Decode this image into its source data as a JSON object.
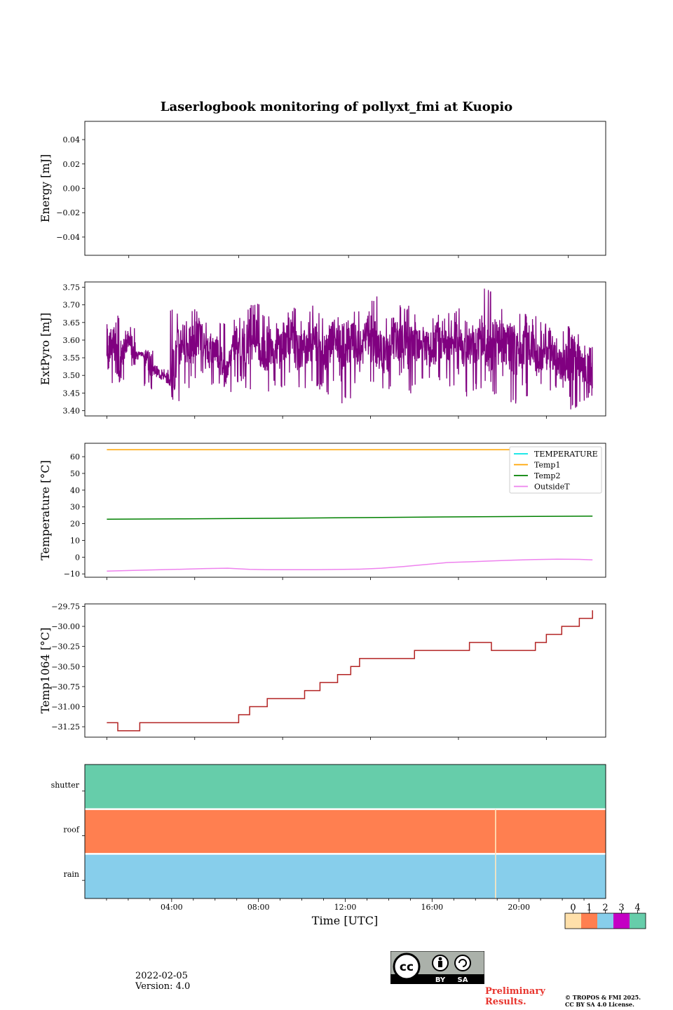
{
  "title": "Laserlogbook monitoring of pollyxt_fmi at Kuopio",
  "footer": {
    "date": "2022-02-05",
    "version": "Version: 4.0",
    "preliminary_line1": "Preliminary",
    "preliminary_line2": "Results.",
    "copyright_line1": "© TROPOS & FMI 2025.",
    "copyright_line2": "CC BY SA 4.0 License.",
    "cc_label_by": "BY",
    "cc_label_sa": "SA",
    "cc_label_cc": "cc"
  },
  "colors": {
    "extpyro": "#800080",
    "temperature": "#00e5e5",
    "temp1": "#ffa500",
    "temp2": "#008000",
    "outsideT": "#ee82ee",
    "temp1064": "#b22222",
    "prelim": "#e8352e"
  },
  "chart_data": [
    {
      "type": "line",
      "ylabel": "Energy [mJ]",
      "ylim": [
        -0.055,
        0.055
      ],
      "yticks": [
        -0.04,
        -0.02,
        0.0,
        0.02,
        0.04
      ],
      "ytick_labels": [
        "−0.04",
        "−0.02",
        "0.00",
        "0.02",
        "0.04"
      ],
      "series": []
    },
    {
      "type": "line",
      "ylabel": "ExtPyro [mJ]",
      "ylim": [
        3.385,
        3.765
      ],
      "yticks": [
        3.4,
        3.45,
        3.5,
        3.55,
        3.6,
        3.65,
        3.7,
        3.75
      ],
      "ytick_labels": [
        "3.40",
        "3.45",
        "3.50",
        "3.55",
        "3.60",
        "3.65",
        "3.70",
        "3.75"
      ],
      "series": [
        {
          "name": "ExtPyro",
          "x": [
            0.5,
            0.8,
            1.1,
            1.3,
            1.5,
            1.8,
            2.2,
            2.6,
            3.0,
            3.4,
            3.9,
            4.3,
            4.7,
            5.1,
            5.5,
            5.9,
            6.3,
            6.8,
            7.2,
            7.6,
            8.0,
            8.4,
            8.8,
            9.2,
            9.6,
            10.0,
            10.4,
            10.8,
            11.2,
            11.6,
            12.0,
            12.4,
            12.8,
            13.2,
            13.6,
            14.0,
            14.4,
            14.8,
            15.2,
            15.6,
            16.0,
            16.4,
            16.8,
            17.2,
            17.6,
            18.0,
            18.4,
            18.8,
            19.2,
            19.6,
            20.0,
            20.4,
            20.8,
            21.2,
            21.6,
            22.0,
            22.4,
            22.6
          ],
          "y": [
            3.55,
            3.6,
            3.52,
            3.58,
            3.6,
            3.56,
            3.56,
            3.52,
            3.5,
            3.48,
            3.6,
            3.58,
            3.62,
            3.56,
            3.58,
            3.5,
            3.6,
            3.58,
            3.62,
            3.55,
            3.6,
            3.58,
            3.62,
            3.56,
            3.59,
            3.6,
            3.57,
            3.61,
            3.58,
            3.6,
            3.56,
            3.62,
            3.58,
            3.55,
            3.6,
            3.59,
            3.58,
            3.61,
            3.56,
            3.6,
            3.58,
            3.62,
            3.57,
            3.59,
            3.61,
            3.55,
            3.6,
            3.58,
            3.56,
            3.6,
            3.55,
            3.58,
            3.56,
            3.52,
            3.55,
            3.53,
            3.52,
            3.5
          ],
          "range_min": [
            3.47,
            3.5,
            3.48,
            3.54,
            3.52,
            3.54,
            3.46,
            3.5,
            3.48,
            3.42,
            3.46,
            3.48,
            3.5,
            3.46,
            3.47,
            3.44,
            3.48,
            3.46,
            3.5,
            3.44,
            3.47,
            3.46,
            3.5,
            3.46,
            3.48,
            3.46,
            3.44,
            3.48,
            3.42,
            3.46,
            3.44,
            3.48,
            3.46,
            3.46,
            3.5,
            3.44,
            3.46,
            3.48,
            3.46,
            3.48,
            3.46,
            3.5,
            3.44,
            3.46,
            3.48,
            3.44,
            3.48,
            3.42,
            3.46,
            3.44,
            3.46,
            3.44,
            3.46,
            3.42,
            3.4,
            3.42,
            3.43,
            3.46
          ],
          "range_max": [
            3.65,
            3.67,
            3.6,
            3.63,
            3.64,
            3.57,
            3.58,
            3.56,
            3.52,
            3.69,
            3.66,
            3.7,
            3.65,
            3.62,
            3.65,
            3.55,
            3.67,
            3.7,
            3.71,
            3.68,
            3.7,
            3.68,
            3.7,
            3.66,
            3.7,
            3.68,
            3.66,
            3.68,
            3.66,
            3.7,
            3.64,
            3.73,
            3.68,
            3.68,
            3.7,
            3.7,
            3.68,
            3.69,
            3.68,
            3.67,
            3.68,
            3.7,
            3.66,
            3.7,
            3.75,
            3.66,
            3.7,
            3.69,
            3.68,
            3.66,
            3.67,
            3.7,
            3.62,
            3.64,
            3.62,
            3.6,
            3.59,
            3.57
          ]
        }
      ]
    },
    {
      "type": "line",
      "ylabel": "Temperature [°C]",
      "ylim": [
        -12,
        68
      ],
      "yticks": [
        -10,
        0,
        10,
        20,
        30,
        40,
        50,
        60
      ],
      "ytick_labels": [
        "−10",
        "0",
        "10",
        "20",
        "30",
        "40",
        "50",
        "60"
      ],
      "legend": [
        "TEMPERATURE",
        "Temp1",
        "Temp2",
        "OutsideT"
      ],
      "legend_loc": "upper right",
      "series": [
        {
          "name": "TEMPERATURE",
          "x": [],
          "y": []
        },
        {
          "name": "Temp1",
          "x": [
            0.5,
            22.6
          ],
          "y": [
            64.2,
            64.2
          ]
        },
        {
          "name": "Temp2",
          "x": [
            0.5,
            4,
            8,
            12,
            16,
            20,
            22.6
          ],
          "y": [
            22.7,
            22.9,
            23.2,
            23.6,
            24.0,
            24.3,
            24.5
          ]
        },
        {
          "name": "OutsideT",
          "x": [
            0.5,
            2,
            4,
            5,
            6,
            7,
            8,
            10,
            12,
            13,
            14,
            15,
            16,
            17,
            18,
            19,
            20,
            21,
            22,
            22.6
          ],
          "y": [
            -8.3,
            -7.8,
            -7.2,
            -6.8,
            -6.6,
            -7.3,
            -7.5,
            -7.5,
            -7.2,
            -6.6,
            -5.6,
            -4.4,
            -3.2,
            -2.8,
            -2.3,
            -1.8,
            -1.4,
            -1.2,
            -1.3,
            -1.6
          ]
        }
      ]
    },
    {
      "type": "line",
      "ylabel": "Temp1064 [°C]",
      "ylim": [
        -31.38,
        -29.72
      ],
      "yticks": [
        -31.25,
        -31.0,
        -30.75,
        -30.5,
        -30.25,
        -30.0,
        -29.75
      ],
      "ytick_labels": [
        "−31.25",
        "−31.00",
        "−30.75",
        "−30.50",
        "−30.25",
        "−30.00",
        "−29.75"
      ],
      "series": [
        {
          "name": "Temp1064",
          "x": [
            0.5,
            0.9,
            1.0,
            1.7,
            2.0,
            6.0,
            6.5,
            7.0,
            7.8,
            8.5,
            9.5,
            10.2,
            11.0,
            11.6,
            12.0,
            13.5,
            14.5,
            16.0,
            17.0,
            18.0,
            19.5,
            20.0,
            20.5,
            21.2,
            22.0,
            22.6
          ],
          "y": [
            -31.2,
            -31.2,
            -31.3,
            -31.3,
            -31.2,
            -31.2,
            -31.1,
            -31.0,
            -30.9,
            -30.9,
            -30.8,
            -30.7,
            -30.6,
            -30.5,
            -30.4,
            -30.4,
            -30.3,
            -30.3,
            -30.2,
            -30.3,
            -30.3,
            -30.2,
            -30.1,
            -30.0,
            -29.9,
            -29.8
          ]
        }
      ]
    },
    {
      "type": "heatmap",
      "rows": [
        "shutter",
        "roof",
        "rain"
      ],
      "xlabel": "Time [UTC]",
      "xlim": [
        0,
        24
      ],
      "xticks": [
        4,
        8,
        12,
        16,
        20
      ],
      "xtick_labels": [
        "04:00",
        "08:00",
        "12:00",
        "16:00",
        "20:00"
      ],
      "segments": [
        {
          "row": "shutter",
          "start": 0,
          "end": 24,
          "value": 4
        },
        {
          "row": "roof",
          "start": 0,
          "end": 18.9,
          "value": 1
        },
        {
          "row": "roof",
          "start": 18.95,
          "end": 24,
          "value": 1
        },
        {
          "row": "rain",
          "start": 0,
          "end": 18.9,
          "value": 2
        },
        {
          "row": "rain",
          "start": 18.95,
          "end": 24,
          "value": 2
        }
      ],
      "colorbar": {
        "labels": [
          "0",
          "1",
          "2",
          "3",
          "4"
        ],
        "colors": [
          "#ffe0aa",
          "#ff7f50",
          "#87ceeb",
          "#c400c4",
          "#66cdaa"
        ]
      }
    }
  ]
}
